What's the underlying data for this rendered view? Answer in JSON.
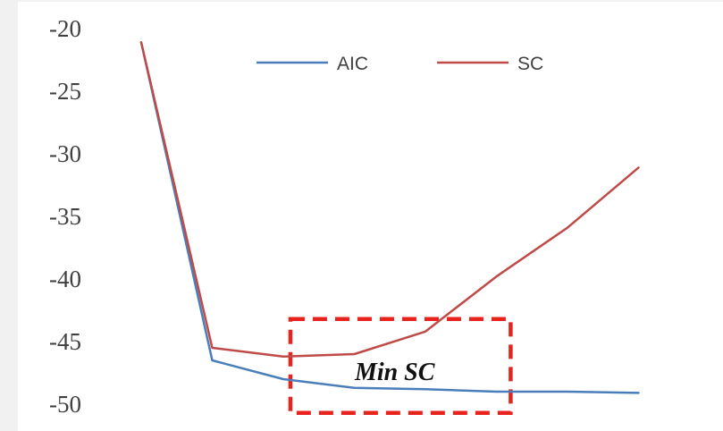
{
  "chart_data": {
    "type": "line",
    "x": [
      1,
      2,
      3,
      4,
      5,
      6,
      7,
      8
    ],
    "ylim": [
      -50,
      -20
    ],
    "yticks": [
      -20,
      -25,
      -30,
      -35,
      -40,
      -45,
      -50
    ],
    "ytick_labels": [
      "-20",
      "-25",
      "-30",
      "-35",
      "-40",
      "-45",
      "-50"
    ],
    "grid": false,
    "legend_position": "top-center",
    "series": [
      {
        "name": "AIC",
        "color": "#4a7ebb",
        "values": [
          -21.1,
          -46.5,
          -48.0,
          -48.7,
          -48.8,
          -49.0,
          -49.0,
          -49.1
        ]
      },
      {
        "name": "SC",
        "color": "#be4b48",
        "values": [
          -21.1,
          -45.5,
          -46.2,
          -46.0,
          -44.2,
          -39.8,
          -35.9,
          -31.1
        ]
      }
    ],
    "annotation": {
      "text": "Min SC",
      "box_color": "#e8221c",
      "x_range": [
        3.1,
        6.2
      ],
      "y_range": [
        -43.2,
        -50.7
      ]
    }
  }
}
